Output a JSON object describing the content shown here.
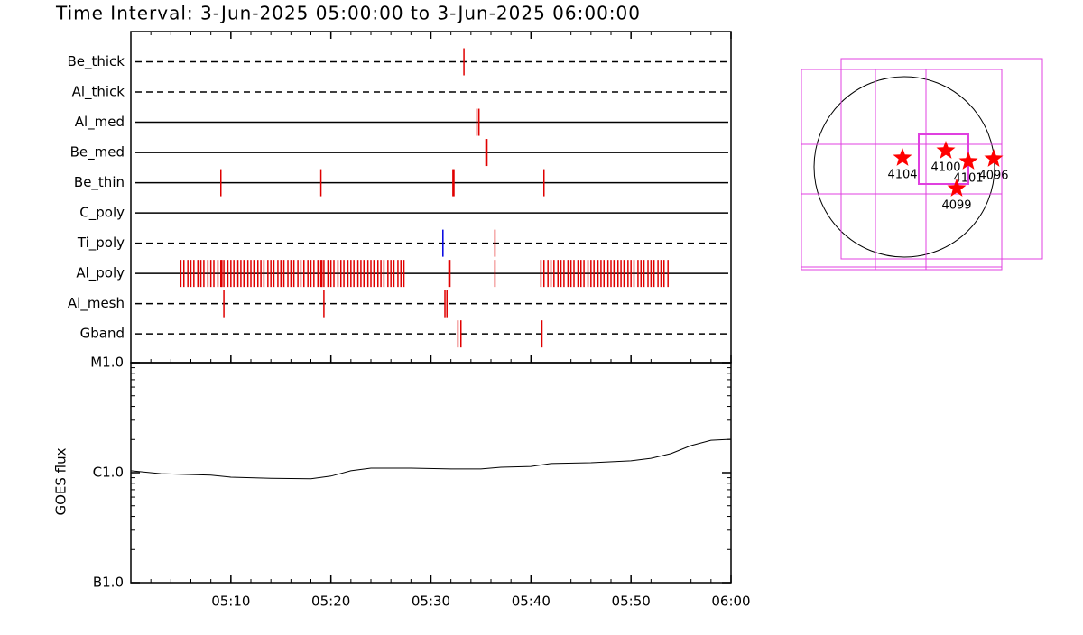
{
  "title": "Time Interval:  3-Jun-2025 05:00:00 to  3-Jun-2025 06:00:00",
  "chart_data": [
    {
      "type": "event",
      "xlim": [
        0,
        60
      ],
      "xticks": [
        10,
        20,
        30,
        40,
        50,
        60
      ],
      "event_color": "#e00000",
      "rows": [
        {
          "name": "Be_thick",
          "linestyle": "dashed",
          "events": [
            33.3
          ]
        },
        {
          "name": "Al_thick",
          "linestyle": "dashed",
          "events": []
        },
        {
          "name": "Al_med",
          "linestyle": "solid",
          "events": [
            34.6,
            34.8
          ]
        },
        {
          "name": "Be_med",
          "linestyle": "solid",
          "events": [
            35.5,
            35.6
          ]
        },
        {
          "name": "Be_thin",
          "linestyle": "solid",
          "events": [
            9.0,
            19.0,
            32.2,
            32.3,
            41.3
          ]
        },
        {
          "name": "C_poly",
          "linestyle": "solid",
          "events": []
        },
        {
          "name": "Ti_poly",
          "linestyle": "dashed",
          "events": [
            31.2,
            36.4
          ],
          "event_colors": [
            "#0000e0",
            "#e00000"
          ]
        },
        {
          "name": "Al_poly",
          "linestyle": "solid",
          "events": [
            5.0,
            5.3,
            5.7,
            6.0,
            6.3,
            6.7,
            7.0,
            7.3,
            7.7,
            8.0,
            8.3,
            8.7,
            9.0,
            9.1,
            9.3,
            9.7,
            10.0,
            10.3,
            10.7,
            11.0,
            11.3,
            11.7,
            12.0,
            12.3,
            12.7,
            13.0,
            13.3,
            13.7,
            14.0,
            14.3,
            14.7,
            15.0,
            15.3,
            15.7,
            16.0,
            16.3,
            16.7,
            17.0,
            17.3,
            17.7,
            18.0,
            18.3,
            18.7,
            19.0,
            19.1,
            19.3,
            19.7,
            20.0,
            20.3,
            20.7,
            21.0,
            21.3,
            21.7,
            22.0,
            22.3,
            22.7,
            23.0,
            23.3,
            23.7,
            24.0,
            24.3,
            24.7,
            25.0,
            25.3,
            25.7,
            26.0,
            26.3,
            26.7,
            27.0,
            27.3,
            31.8,
            31.9,
            36.4,
            41.0,
            41.3,
            41.7,
            42.0,
            42.3,
            42.7,
            43.0,
            43.3,
            43.7,
            44.0,
            44.3,
            44.7,
            45.0,
            45.3,
            45.7,
            46.0,
            46.3,
            46.7,
            47.0,
            47.3,
            47.7,
            48.0,
            48.3,
            48.7,
            49.0,
            49.3,
            49.7,
            50.0,
            50.3,
            50.7,
            51.0,
            51.3,
            51.7,
            52.0,
            52.3,
            52.7,
            53.0,
            53.3,
            53.7
          ]
        },
        {
          "name": "Al_mesh",
          "linestyle": "dashed",
          "events": [
            9.3,
            19.3,
            31.4,
            31.6
          ]
        },
        {
          "name": "Gband",
          "linestyle": "dashed",
          "events": [
            32.7,
            33.0,
            41.1
          ]
        }
      ]
    },
    {
      "type": "line",
      "ylabel": "GOES flux",
      "log_scale": true,
      "xlim": [
        0,
        60
      ],
      "ylim": [
        1e-07,
        1e-05
      ],
      "xticks": [
        {
          "value": 10,
          "label": "05:10"
        },
        {
          "value": 20,
          "label": "05:20"
        },
        {
          "value": 30,
          "label": "05:30"
        },
        {
          "value": 40,
          "label": "05:40"
        },
        {
          "value": 50,
          "label": "05:50"
        },
        {
          "value": 60,
          "label": "06:00"
        }
      ],
      "yticks": [
        {
          "value": 1e-07,
          "label": "B1.0"
        },
        {
          "value": 1e-06,
          "label": "C1.0"
        },
        {
          "value": 1e-05,
          "label": "M1.0"
        }
      ],
      "color": "#000000",
      "x": [
        0,
        3,
        8,
        10,
        14,
        18,
        20,
        22,
        24,
        28,
        32,
        35,
        37,
        40,
        42,
        46,
        50,
        52,
        54,
        56,
        58,
        60
      ],
      "values": [
        1.04e-06,
        9.8e-07,
        9.5e-07,
        9.1e-07,
        8.9e-07,
        8.8e-07,
        9.3e-07,
        1.04e-06,
        1.1e-06,
        1.1e-06,
        1.08e-06,
        1.08e-06,
        1.12e-06,
        1.14e-06,
        1.21e-06,
        1.23e-06,
        1.28e-06,
        1.35e-06,
        1.49e-06,
        1.76e-06,
        1.97e-06,
        2.01e-06
      ]
    }
  ],
  "map": {
    "regions": [
      "4104",
      "4100",
      "4101",
      "4096",
      "4099"
    ]
  }
}
